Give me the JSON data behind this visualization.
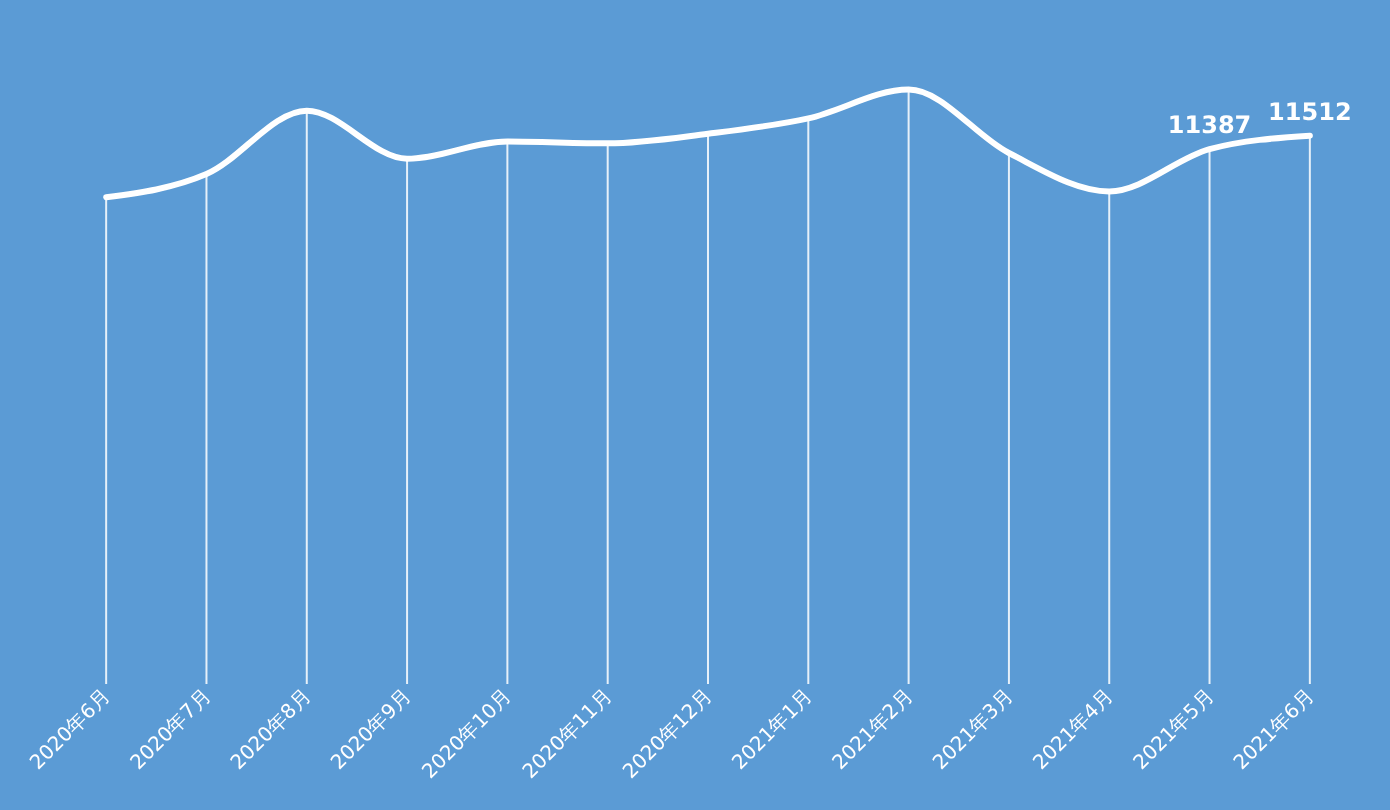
{
  "chart_data": {
    "type": "line",
    "color": "#ffffff",
    "grid": "x",
    "categories": [
      "2020年6月",
      "2020年7月",
      "2020年8月",
      "2020年9月",
      "2020年10月",
      "2020年11月",
      "2020年12月",
      "2021年1月",
      "2021年2月",
      "2021年3月",
      "2021年4月",
      "2021年5月",
      "2021年6月"
    ],
    "values": [
      10940,
      11155,
      11744,
      11298,
      11458,
      11441,
      11530,
      11673,
      11941,
      11351,
      10994,
      11387,
      11512
    ],
    "value_labels": [
      null,
      null,
      null,
      null,
      null,
      null,
      null,
      null,
      null,
      null,
      null,
      "11387",
      "11512"
    ]
  }
}
